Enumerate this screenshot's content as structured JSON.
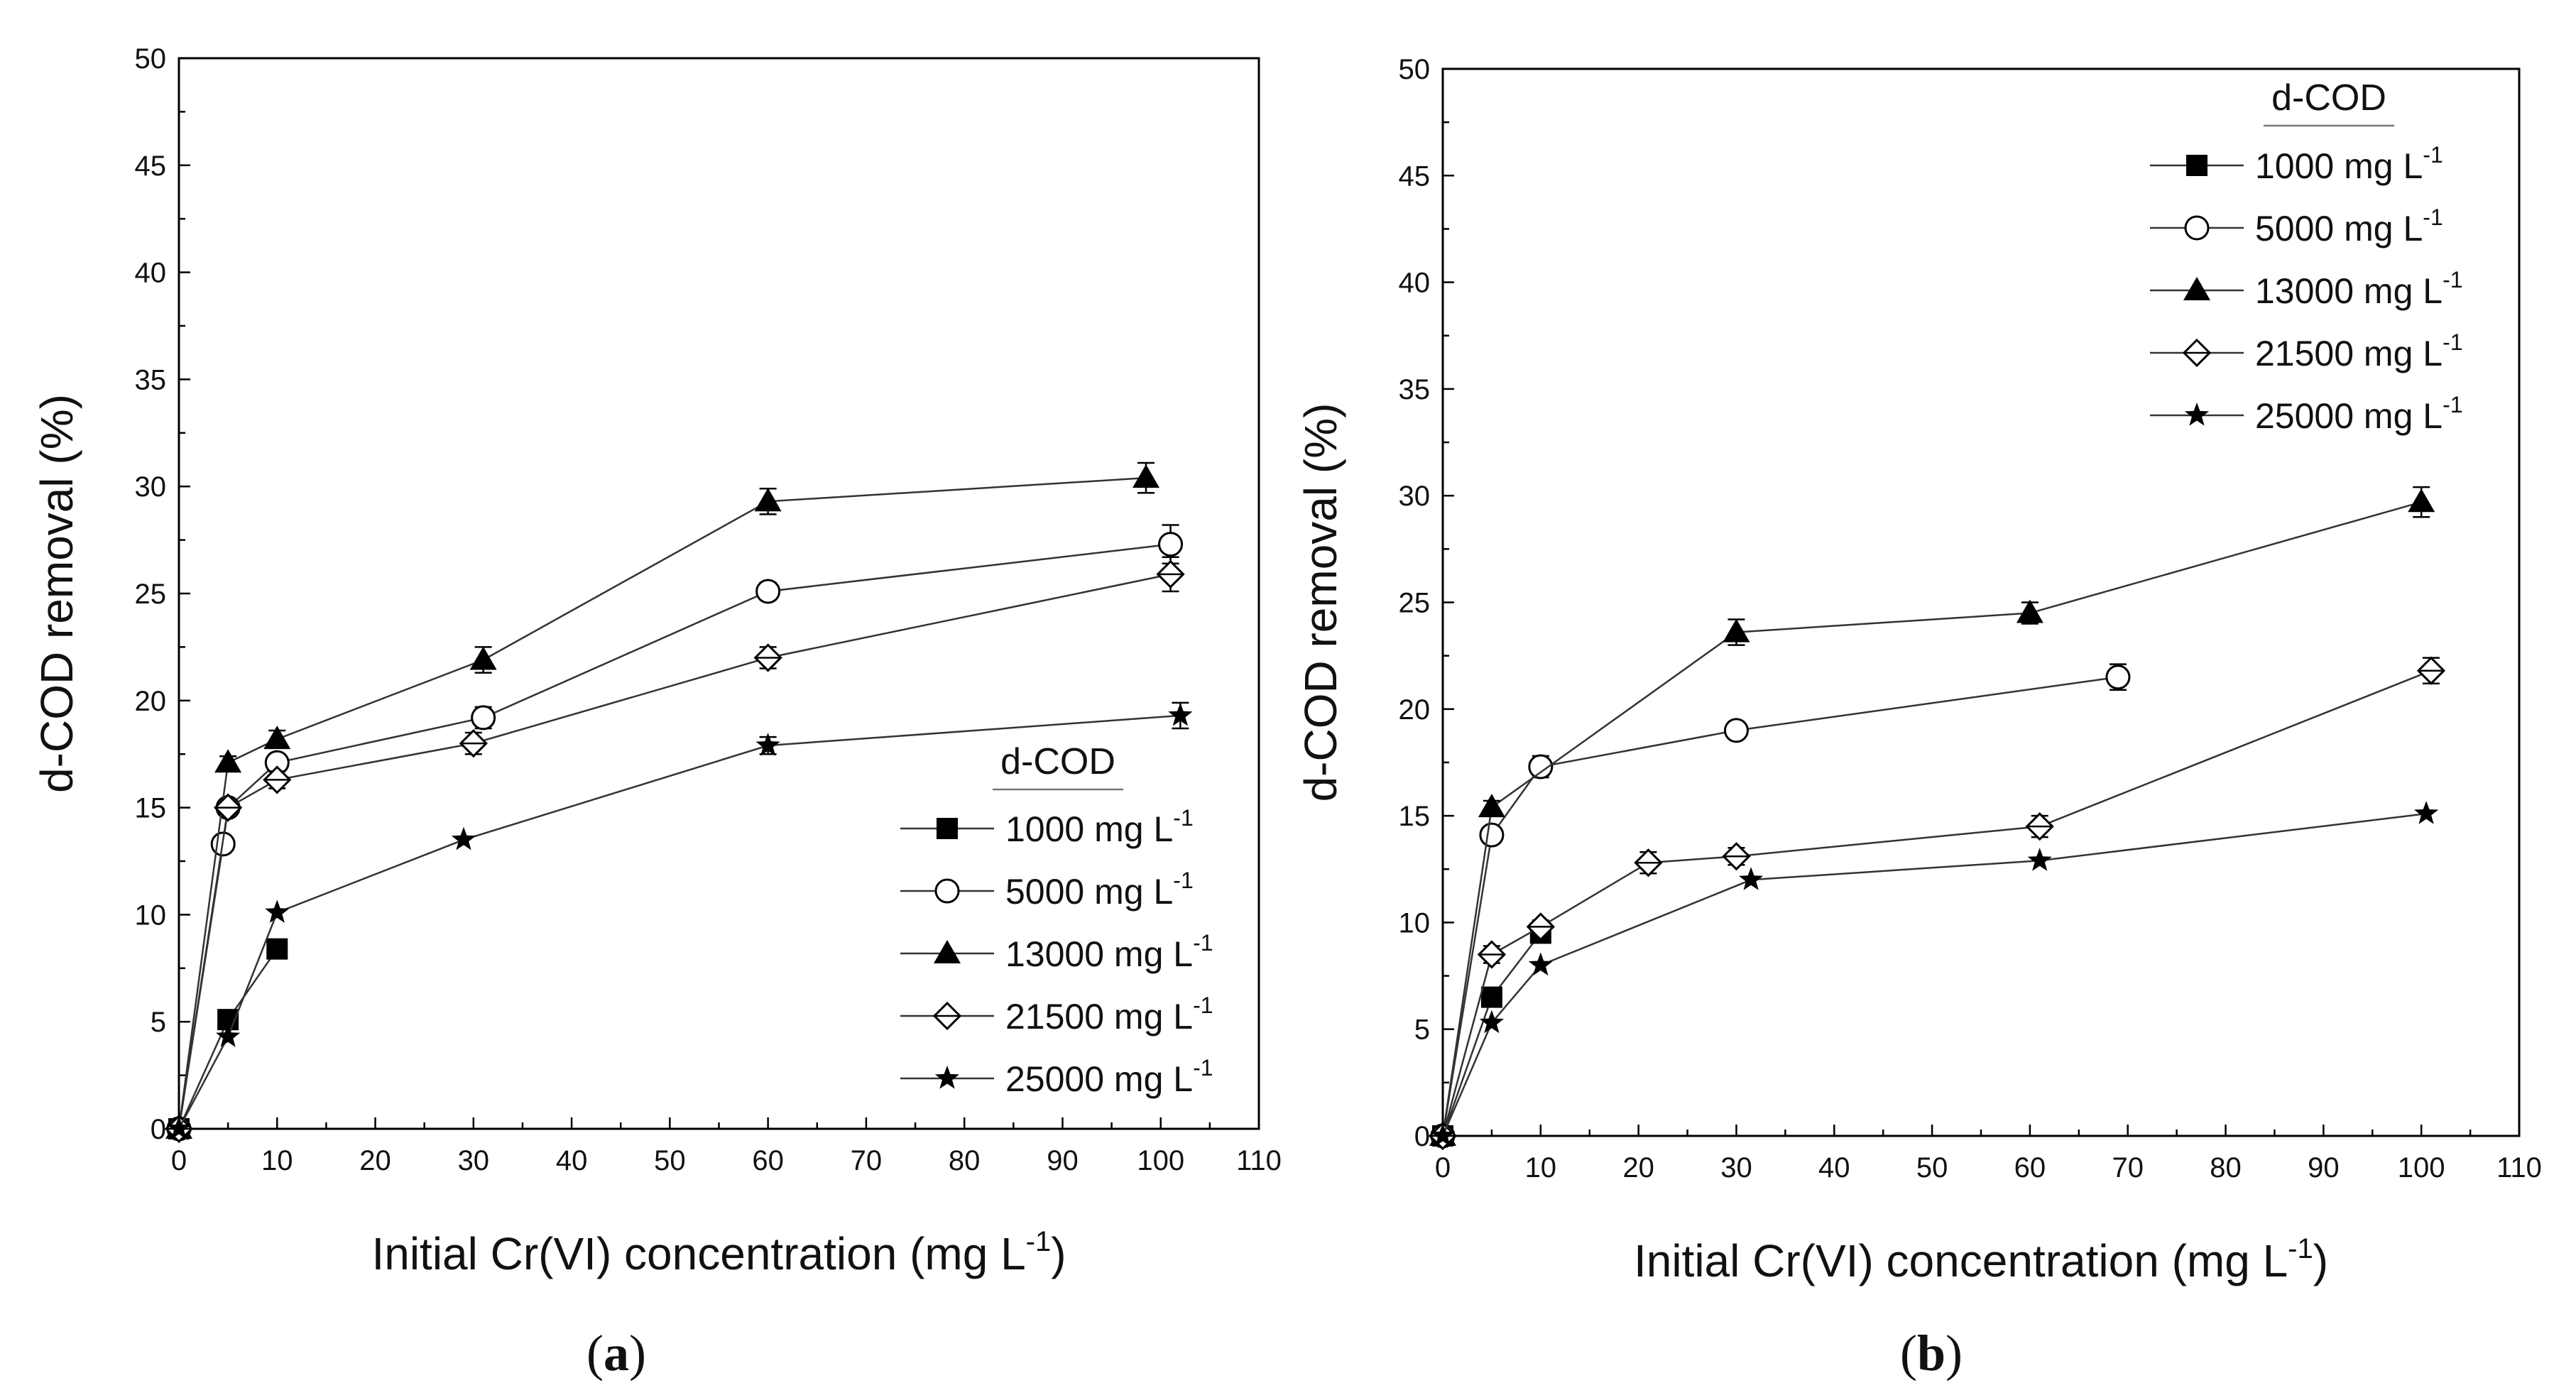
{
  "chart_data": [
    {
      "panel": "a",
      "type": "line",
      "xlabel_main": "Initial Cr(VI) concentration (mg L",
      "xlabel_sup": "-1",
      "xlabel_close": ")",
      "ylabel": "d-COD removal (%)",
      "xlim": [
        0,
        110
      ],
      "ylim": [
        0,
        50
      ],
      "xticks": [
        0,
        10,
        20,
        30,
        40,
        50,
        60,
        70,
        80,
        90,
        100,
        110
      ],
      "yticks": [
        0,
        5,
        10,
        15,
        20,
        25,
        30,
        35,
        40,
        45,
        50
      ],
      "legend_title": "d-COD",
      "legend_placement": "lower-right",
      "grid": false,
      "series": [
        {
          "name": "1000 mg L",
          "name_sup": "-1",
          "marker": "square-filled",
          "points": [
            [
              0,
              0
            ],
            [
              5,
              5.1
            ],
            [
              10,
              8.4
            ]
          ],
          "errors": [
            0,
            0,
            0
          ]
        },
        {
          "name": "5000 mg L",
          "name_sup": "-1",
          "marker": "circle-open",
          "points": [
            [
              0,
              0
            ],
            [
              4.5,
              13.3
            ],
            [
              5,
              15.0
            ],
            [
              10,
              17.1
            ],
            [
              31,
              19.2
            ],
            [
              60,
              25.1
            ],
            [
              101,
              27.3
            ]
          ],
          "errors": [
            0,
            0.3,
            0.3,
            0.4,
            0.5,
            0.4,
            0.9
          ]
        },
        {
          "name": "13000 mg L",
          "name_sup": "-1",
          "marker": "triangle-filled",
          "points": [
            [
              0,
              0
            ],
            [
              5,
              17.1
            ],
            [
              10,
              18.2
            ],
            [
              31,
              21.9
            ],
            [
              60,
              29.3
            ],
            [
              98.5,
              30.4
            ]
          ],
          "errors": [
            0,
            0.3,
            0.4,
            0.6,
            0.6,
            0.7
          ]
        },
        {
          "name": "21500 mg L",
          "name_sup": "-1",
          "marker": "diamond-open",
          "points": [
            [
              0,
              0
            ],
            [
              5,
              15.0
            ],
            [
              10,
              16.3
            ],
            [
              30,
              18.0
            ],
            [
              60,
              22.0
            ],
            [
              101,
              25.9
            ]
          ],
          "errors": [
            0,
            0.3,
            0.4,
            0.5,
            0.5,
            0.8
          ]
        },
        {
          "name": "25000 mg L",
          "name_sup": "-1",
          "marker": "star-filled",
          "points": [
            [
              0,
              0
            ],
            [
              5,
              4.3
            ],
            [
              10,
              10.1
            ],
            [
              29,
              13.5
            ],
            [
              60,
              17.9
            ],
            [
              102,
              19.3
            ]
          ],
          "errors": [
            0,
            0,
            0,
            0,
            0.4,
            0.6
          ]
        }
      ]
    },
    {
      "panel": "b",
      "type": "line",
      "xlabel_main": "Initial Cr(VI) concentration (mg L",
      "xlabel_sup": "-1",
      "xlabel_close": ")",
      "ylabel": "d-COD removal (%)",
      "xlim": [
        0,
        110
      ],
      "ylim": [
        0,
        50
      ],
      "xticks": [
        0,
        10,
        20,
        30,
        40,
        50,
        60,
        70,
        80,
        90,
        100,
        110
      ],
      "yticks": [
        0,
        5,
        10,
        15,
        20,
        25,
        30,
        35,
        40,
        45,
        50
      ],
      "legend_title": "d-COD",
      "legend_placement": "upper-right",
      "grid": false,
      "series": [
        {
          "name": "1000 mg L",
          "name_sup": "-1",
          "marker": "square-filled",
          "points": [
            [
              0,
              0
            ],
            [
              5,
              6.5
            ],
            [
              10,
              9.5
            ]
          ],
          "errors": [
            0,
            0,
            0
          ]
        },
        {
          "name": "5000 mg L",
          "name_sup": "-1",
          "marker": "circle-open",
          "points": [
            [
              0,
              0
            ],
            [
              5,
              14.1
            ],
            [
              10,
              17.3
            ],
            [
              30,
              19.0
            ],
            [
              69,
              21.5
            ]
          ],
          "errors": [
            0,
            0.3,
            0.5,
            0.4,
            0.6
          ]
        },
        {
          "name": "13000 mg L",
          "name_sup": "-1",
          "marker": "triangle-filled",
          "points": [
            [
              0,
              0
            ],
            [
              5,
              15.4
            ],
            [
              30,
              23.6
            ],
            [
              60,
              24.5
            ],
            [
              100,
              29.7
            ]
          ],
          "errors": [
            0,
            0.3,
            0.6,
            0.5,
            0.7
          ]
        },
        {
          "name": "21500 mg L",
          "name_sup": "-1",
          "marker": "diamond-open",
          "points": [
            [
              0,
              0
            ],
            [
              5,
              8.5
            ],
            [
              10,
              9.8
            ],
            [
              21,
              12.8
            ],
            [
              30,
              13.1
            ],
            [
              61,
              14.5
            ],
            [
              101,
              21.8
            ]
          ],
          "errors": [
            0,
            0.4,
            0.3,
            0.5,
            0.4,
            0.5,
            0.6
          ]
        },
        {
          "name": "25000 mg L",
          "name_sup": "-1",
          "marker": "star-filled",
          "points": [
            [
              0,
              0
            ],
            [
              5,
              5.3
            ],
            [
              10,
              8.0
            ],
            [
              31.5,
              12.0
            ],
            [
              61,
              12.9
            ],
            [
              100.5,
              15.1
            ]
          ],
          "errors": [
            0,
            0,
            0,
            0,
            0,
            0
          ]
        }
      ]
    }
  ],
  "captions": [
    "(a)",
    "(b)"
  ]
}
